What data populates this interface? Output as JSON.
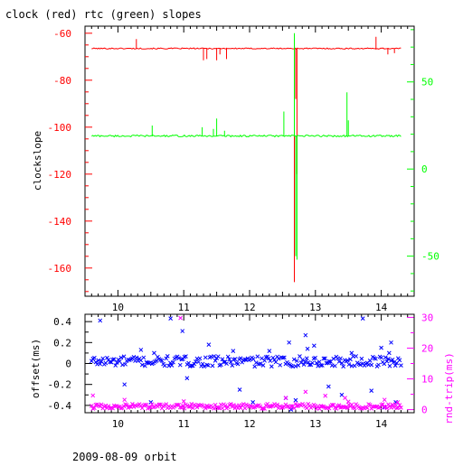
{
  "page": {
    "title": "clock (red) rtc (green) slopes",
    "footer": "2009-08-09 orbit"
  },
  "colors": {
    "red": "#ff0000",
    "green": "#00ff00",
    "blue": "#0000ff",
    "magenta": "#ff00ff",
    "black": "#000000"
  },
  "chart_data": [
    {
      "type": "line",
      "title": "clock (red) rtc (green) slopes",
      "xlim": [
        9.5,
        14.5
      ],
      "x_ticks": [
        "10",
        "11",
        "12",
        "13",
        "14"
      ],
      "ylabel": "clockslope",
      "ylim": [
        -172,
        -57
      ],
      "y_ticks": [
        "-60",
        "-80",
        "-100",
        "-120",
        "-140",
        "-160"
      ],
      "y2lim": [
        -73,
        82
      ],
      "y2_ticks": [
        "50",
        "0",
        "-50"
      ],
      "grid": false,
      "series": [
        {
          "color": "red",
          "axis": "left",
          "base": -66.5,
          "x": [
            9.6,
            14.3
          ],
          "spikes": [
            {
              "x": 10.28,
              "y": -62.5
            },
            {
              "x": 11.3,
              "y": -71.5
            },
            {
              "x": 11.35,
              "y": -71
            },
            {
              "x": 11.5,
              "y": -71.5
            },
            {
              "x": 11.55,
              "y": -69
            },
            {
              "x": 11.65,
              "y": -71
            },
            {
              "x": 12.68,
              "y": -166
            },
            {
              "x": 12.7,
              "y": -88
            },
            {
              "x": 12.72,
              "y": -120
            },
            {
              "x": 13.92,
              "y": -61.5
            },
            {
              "x": 14.1,
              "y": -69
            },
            {
              "x": 14.2,
              "y": -68.5
            }
          ]
        },
        {
          "color": "green",
          "axis": "right",
          "base": 19,
          "x": [
            9.6,
            14.3
          ],
          "spikes": [
            {
              "x": 10.52,
              "y": 25
            },
            {
              "x": 11.28,
              "y": 24
            },
            {
              "x": 11.45,
              "y": 23
            },
            {
              "x": 11.5,
              "y": 29
            },
            {
              "x": 11.62,
              "y": 22
            },
            {
              "x": 12.52,
              "y": 33
            },
            {
              "x": 12.68,
              "y": 78
            },
            {
              "x": 12.7,
              "y": -50
            },
            {
              "x": 12.72,
              "y": -52
            },
            {
              "x": 13.48,
              "y": 44
            },
            {
              "x": 13.5,
              "y": 28
            }
          ]
        }
      ]
    },
    {
      "type": "scatter",
      "xlim": [
        9.5,
        14.5
      ],
      "x_ticks": [
        "10",
        "11",
        "12",
        "13",
        "14"
      ],
      "ylabel": "offset(ms)",
      "ylim": [
        -0.47,
        0.47
      ],
      "y_ticks": [
        "0.4",
        "0.2",
        "0",
        "-0.2",
        "-0.4"
      ],
      "y2label": "rnd-trip(ms)",
      "y2lim": [
        -1,
        31
      ],
      "y2_ticks": [
        "30",
        "20",
        "10",
        "0"
      ],
      "grid": false,
      "series": [
        {
          "color": "blue",
          "axis": "left",
          "marker": "x",
          "band_center": 0.02,
          "band_width": 0.05,
          "x_range": [
            9.6,
            14.3
          ],
          "outliers": [
            {
              "x": 9.73,
              "y": 0.41
            },
            {
              "x": 10.1,
              "y": -0.2
            },
            {
              "x": 10.35,
              "y": 0.13
            },
            {
              "x": 10.5,
              "y": -0.37
            },
            {
              "x": 10.55,
              "y": 0.1
            },
            {
              "x": 10.8,
              "y": 0.43
            },
            {
              "x": 10.98,
              "y": 0.31
            },
            {
              "x": 11.05,
              "y": -0.14
            },
            {
              "x": 11.38,
              "y": 0.18
            },
            {
              "x": 11.75,
              "y": 0.12
            },
            {
              "x": 11.85,
              "y": -0.25
            },
            {
              "x": 12.05,
              "y": -0.37
            },
            {
              "x": 12.3,
              "y": 0.12
            },
            {
              "x": 12.55,
              "y": -0.33
            },
            {
              "x": 12.6,
              "y": 0.2
            },
            {
              "x": 12.63,
              "y": -0.44
            },
            {
              "x": 12.7,
              "y": -0.35
            },
            {
              "x": 12.85,
              "y": 0.27
            },
            {
              "x": 12.88,
              "y": 0.14
            },
            {
              "x": 12.98,
              "y": 0.17
            },
            {
              "x": 13.2,
              "y": -0.22
            },
            {
              "x": 13.4,
              "y": -0.3
            },
            {
              "x": 13.55,
              "y": 0.1
            },
            {
              "x": 13.72,
              "y": 0.43
            },
            {
              "x": 13.85,
              "y": -0.26
            },
            {
              "x": 14.0,
              "y": 0.15
            },
            {
              "x": 14.05,
              "y": -0.42
            },
            {
              "x": 14.12,
              "y": 0.1
            },
            {
              "x": 14.15,
              "y": 0.2
            },
            {
              "x": 14.22,
              "y": -0.37
            }
          ]
        },
        {
          "color": "magenta",
          "axis": "right",
          "marker": "x",
          "band_center": 1.1,
          "band_width": 0.8,
          "x_range": [
            9.6,
            14.3
          ],
          "outliers": [
            {
              "x": 10.95,
              "y": 29.8
            },
            {
              "x": 9.62,
              "y": 4.6
            },
            {
              "x": 10.1,
              "y": 3.2
            },
            {
              "x": 11.0,
              "y": 2.7
            },
            {
              "x": 12.55,
              "y": 3.8
            },
            {
              "x": 12.85,
              "y": 5.8
            },
            {
              "x": 13.15,
              "y": 4.5
            },
            {
              "x": 13.45,
              "y": 3.8
            },
            {
              "x": 13.5,
              "y": 2.6
            },
            {
              "x": 14.05,
              "y": 3.2
            },
            {
              "x": 14.25,
              "y": 2.4
            }
          ]
        }
      ]
    }
  ]
}
